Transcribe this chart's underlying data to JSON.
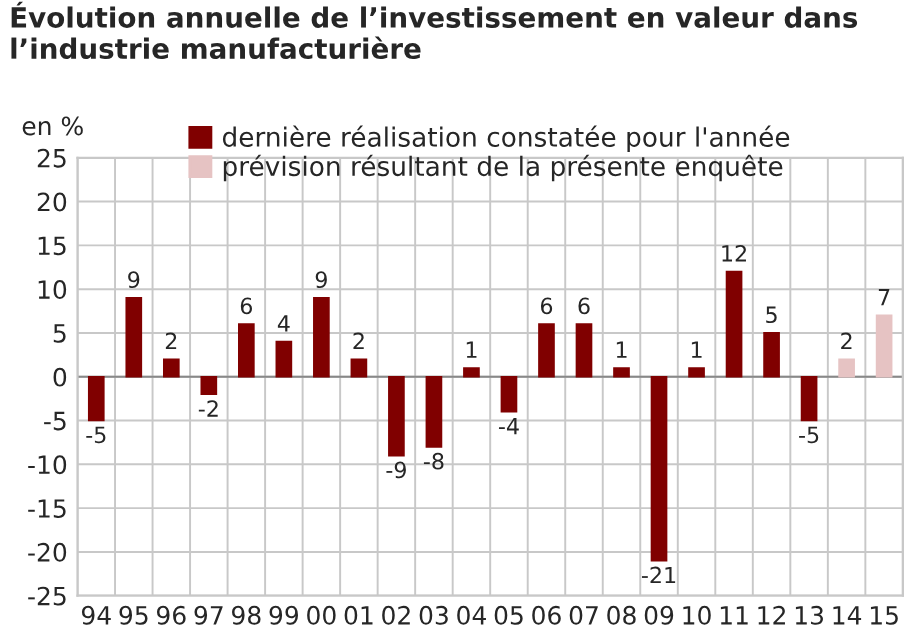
{
  "chart_data": {
    "type": "bar",
    "title": "Évolution annuelle de l’investissement en valeur dans l’industrie manufacturière",
    "ylabel": "en %",
    "categories": [
      "94",
      "95",
      "96",
      "97",
      "98",
      "99",
      "00",
      "01",
      "02",
      "03",
      "04",
      "05",
      "06",
      "07",
      "08",
      "09",
      "10",
      "11",
      "12",
      "13",
      "14",
      "15"
    ],
    "series": [
      {
        "name": "dernière réalisation constatée pour l'année",
        "color": "#800000",
        "values": [
          -5,
          9,
          2,
          -2,
          6,
          4,
          9,
          2,
          -9,
          -8,
          1,
          -4,
          6,
          6,
          1,
          -21,
          1,
          12,
          5,
          -5,
          null,
          null
        ]
      },
      {
        "name": "prévision résultant de la présente enquête",
        "color": "#e6c3c3",
        "values": [
          null,
          null,
          null,
          null,
          null,
          null,
          null,
          null,
          null,
          null,
          null,
          null,
          null,
          null,
          null,
          null,
          null,
          null,
          null,
          null,
          2,
          7
        ]
      }
    ],
    "ylim": [
      -25,
      25
    ],
    "yticks": [
      -25,
      -20,
      -15,
      -10,
      -5,
      0,
      5,
      10,
      15,
      20,
      25
    ],
    "grid": true,
    "legend": "top",
    "data_labels": true
  }
}
